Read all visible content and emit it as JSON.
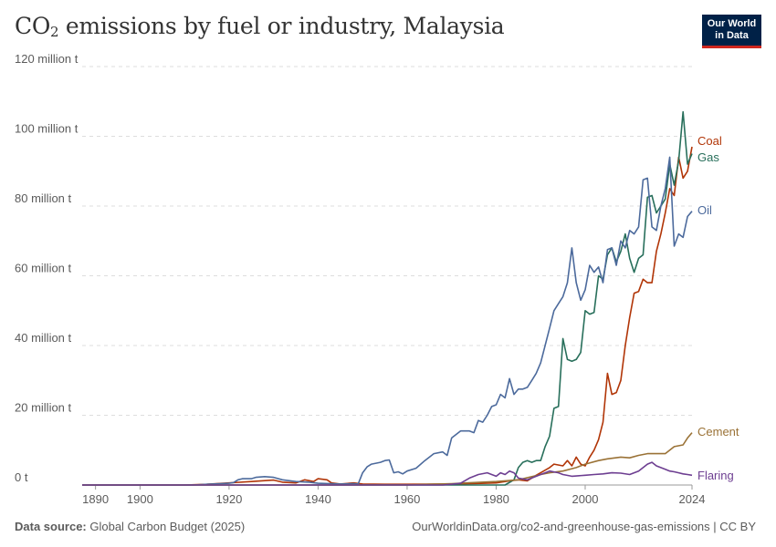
{
  "header": {
    "title_pre": "CO",
    "title_sub": "2",
    "title_post": " emissions by fuel or industry, Malaysia",
    "logo_line1": "Our World",
    "logo_line2": "in Data"
  },
  "footer": {
    "source_label": "Data source:",
    "source_value": " Global Carbon Budget (2025)",
    "url": "OurWorldinData.org/co2-and-greenhouse-gas-emissions | CC BY"
  },
  "chart_data": {
    "type": "line",
    "title": "CO₂ emissions by fuel or industry, Malaysia",
    "xlim": [
      1887,
      2024
    ],
    "ylim": [
      0,
      120000000
    ],
    "x_ticks": [
      1890,
      1900,
      1920,
      1940,
      1960,
      1980,
      2000,
      2024
    ],
    "y_ticks": [
      {
        "value": 0,
        "label": "0 t"
      },
      {
        "value": 20000000,
        "label": "20 million t"
      },
      {
        "value": 40000000,
        "label": "40 million t"
      },
      {
        "value": 60000000,
        "label": "60 million t"
      },
      {
        "value": 80000000,
        "label": "80 million t"
      },
      {
        "value": 100000000,
        "label": "100 million t"
      },
      {
        "value": 120000000,
        "label": "120 million t"
      }
    ],
    "grid": "horizontal",
    "legend": "line-end labels",
    "series": [
      {
        "name": "Coal",
        "color": "#b13507",
        "points": [
          [
            1887,
            0
          ],
          [
            1910,
            0
          ],
          [
            1915,
            200000
          ],
          [
            1920,
            600000
          ],
          [
            1925,
            1000000
          ],
          [
            1930,
            1400000
          ],
          [
            1932,
            800000
          ],
          [
            1935,
            600000
          ],
          [
            1937,
            1500000
          ],
          [
            1939,
            1000000
          ],
          [
            1940,
            1800000
          ],
          [
            1942,
            1500000
          ],
          [
            1943,
            600000
          ],
          [
            1945,
            300000
          ],
          [
            1948,
            600000
          ],
          [
            1950,
            300000
          ],
          [
            1955,
            200000
          ],
          [
            1960,
            200000
          ],
          [
            1970,
            300000
          ],
          [
            1975,
            400000
          ],
          [
            1980,
            600000
          ],
          [
            1983,
            1200000
          ],
          [
            1985,
            1500000
          ],
          [
            1987,
            1200000
          ],
          [
            1989,
            2800000
          ],
          [
            1990,
            3500000
          ],
          [
            1992,
            5000000
          ],
          [
            1993,
            6000000
          ],
          [
            1995,
            5500000
          ],
          [
            1996,
            7000000
          ],
          [
            1997,
            5500000
          ],
          [
            1998,
            8000000
          ],
          [
            1999,
            6000000
          ],
          [
            2000,
            5500000
          ],
          [
            2001,
            8000000
          ],
          [
            2002,
            10000000
          ],
          [
            2003,
            13000000
          ],
          [
            2004,
            18000000
          ],
          [
            2005,
            32000000
          ],
          [
            2006,
            26000000
          ],
          [
            2007,
            26500000
          ],
          [
            2008,
            30000000
          ],
          [
            2009,
            40000000
          ],
          [
            2010,
            48000000
          ],
          [
            2011,
            55000000
          ],
          [
            2012,
            55500000
          ],
          [
            2013,
            59000000
          ],
          [
            2014,
            58000000
          ],
          [
            2015,
            58000000
          ],
          [
            2016,
            67000000
          ],
          [
            2017,
            72000000
          ],
          [
            2018,
            78000000
          ],
          [
            2019,
            85000000
          ],
          [
            2020,
            83000000
          ],
          [
            2021,
            94000000
          ],
          [
            2022,
            88000000
          ],
          [
            2023,
            90000000
          ],
          [
            2024,
            97000000
          ]
        ]
      },
      {
        "name": "Gas",
        "color": "#286f5b",
        "points": [
          [
            1887,
            0
          ],
          [
            1982,
            0
          ],
          [
            1984,
            1500000
          ],
          [
            1985,
            5000000
          ],
          [
            1986,
            6500000
          ],
          [
            1987,
            7000000
          ],
          [
            1988,
            6500000
          ],
          [
            1989,
            7000000
          ],
          [
            1990,
            7000000
          ],
          [
            1991,
            11000000
          ],
          [
            1992,
            14000000
          ],
          [
            1993,
            22000000
          ],
          [
            1994,
            22500000
          ],
          [
            1995,
            42000000
          ],
          [
            1996,
            36000000
          ],
          [
            1997,
            35500000
          ],
          [
            1998,
            36000000
          ],
          [
            1999,
            38000000
          ],
          [
            2000,
            50000000
          ],
          [
            2001,
            49000000
          ],
          [
            2002,
            49500000
          ],
          [
            2003,
            60000000
          ],
          [
            2004,
            59000000
          ],
          [
            2005,
            66000000
          ],
          [
            2006,
            68000000
          ],
          [
            2007,
            64000000
          ],
          [
            2008,
            67000000
          ],
          [
            2009,
            72000000
          ],
          [
            2010,
            65000000
          ],
          [
            2011,
            61000000
          ],
          [
            2012,
            65000000
          ],
          [
            2013,
            66000000
          ],
          [
            2014,
            82500000
          ],
          [
            2015,
            83000000
          ],
          [
            2016,
            78000000
          ],
          [
            2017,
            80000000
          ],
          [
            2018,
            82000000
          ],
          [
            2019,
            92000000
          ],
          [
            2020,
            86000000
          ],
          [
            2021,
            93000000
          ],
          [
            2022,
            107000000
          ],
          [
            2023,
            92000000
          ],
          [
            2024,
            95000000
          ]
        ]
      },
      {
        "name": "Oil",
        "color": "#4c6a9c",
        "points": [
          [
            1887,
            0
          ],
          [
            1912,
            0
          ],
          [
            1915,
            200000
          ],
          [
            1918,
            400000
          ],
          [
            1920,
            500000
          ],
          [
            1921,
            700000
          ],
          [
            1922,
            1500000
          ],
          [
            1923,
            1800000
          ],
          [
            1925,
            1800000
          ],
          [
            1926,
            2200000
          ],
          [
            1928,
            2400000
          ],
          [
            1930,
            2200000
          ],
          [
            1932,
            1500000
          ],
          [
            1935,
            1000000
          ],
          [
            1938,
            800000
          ],
          [
            1940,
            500000
          ],
          [
            1945,
            300000
          ],
          [
            1948,
            400000
          ],
          [
            1949,
            300000
          ],
          [
            1950,
            3500000
          ],
          [
            1951,
            5200000
          ],
          [
            1952,
            6000000
          ],
          [
            1954,
            6500000
          ],
          [
            1955,
            7000000
          ],
          [
            1956,
            7200000
          ],
          [
            1957,
            3500000
          ],
          [
            1958,
            3800000
          ],
          [
            1959,
            3200000
          ],
          [
            1960,
            4000000
          ],
          [
            1962,
            4800000
          ],
          [
            1964,
            7000000
          ],
          [
            1966,
            9000000
          ],
          [
            1968,
            9500000
          ],
          [
            1969,
            8500000
          ],
          [
            1970,
            13500000
          ],
          [
            1972,
            15500000
          ],
          [
            1974,
            15500000
          ],
          [
            1975,
            15000000
          ],
          [
            1976,
            18500000
          ],
          [
            1977,
            18000000
          ],
          [
            1978,
            20000000
          ],
          [
            1979,
            22500000
          ],
          [
            1980,
            23000000
          ],
          [
            1981,
            26000000
          ],
          [
            1982,
            25000000
          ],
          [
            1983,
            30500000
          ],
          [
            1984,
            26000000
          ],
          [
            1985,
            27500000
          ],
          [
            1986,
            27500000
          ],
          [
            1987,
            28000000
          ],
          [
            1988,
            30000000
          ],
          [
            1989,
            32000000
          ],
          [
            1990,
            35000000
          ],
          [
            1991,
            40000000
          ],
          [
            1992,
            45000000
          ],
          [
            1993,
            50000000
          ],
          [
            1994,
            52000000
          ],
          [
            1995,
            54000000
          ],
          [
            1996,
            58000000
          ],
          [
            1997,
            68000000
          ],
          [
            1998,
            58000000
          ],
          [
            1999,
            53000000
          ],
          [
            2000,
            56000000
          ],
          [
            2001,
            63000000
          ],
          [
            2002,
            61000000
          ],
          [
            2003,
            62500000
          ],
          [
            2004,
            58000000
          ],
          [
            2005,
            67500000
          ],
          [
            2006,
            68000000
          ],
          [
            2007,
            63000000
          ],
          [
            2008,
            70000000
          ],
          [
            2009,
            68000000
          ],
          [
            2010,
            73000000
          ],
          [
            2011,
            72000000
          ],
          [
            2012,
            74000000
          ],
          [
            2013,
            87500000
          ],
          [
            2014,
            88000000
          ],
          [
            2015,
            74000000
          ],
          [
            2016,
            73000000
          ],
          [
            2017,
            80000000
          ],
          [
            2018,
            85000000
          ],
          [
            2019,
            94000000
          ],
          [
            2020,
            68500000
          ],
          [
            2021,
            72000000
          ],
          [
            2022,
            71000000
          ],
          [
            2023,
            77000000
          ],
          [
            2024,
            78500000
          ]
        ]
      },
      {
        "name": "Cement",
        "color": "#9a7236",
        "points": [
          [
            1887,
            0
          ],
          [
            1960,
            0
          ],
          [
            1965,
            200000
          ],
          [
            1970,
            400000
          ],
          [
            1975,
            700000
          ],
          [
            1980,
            1000000
          ],
          [
            1985,
            1500000
          ],
          [
            1990,
            3000000
          ],
          [
            1992,
            3500000
          ],
          [
            1995,
            4000000
          ],
          [
            1998,
            5000000
          ],
          [
            2000,
            6000000
          ],
          [
            2003,
            7000000
          ],
          [
            2005,
            7500000
          ],
          [
            2008,
            8000000
          ],
          [
            2010,
            7800000
          ],
          [
            2012,
            8500000
          ],
          [
            2014,
            9000000
          ],
          [
            2016,
            9000000
          ],
          [
            2018,
            9000000
          ],
          [
            2020,
            11000000
          ],
          [
            2022,
            11500000
          ],
          [
            2023,
            13500000
          ],
          [
            2024,
            15000000
          ]
        ]
      },
      {
        "name": "Flaring",
        "color": "#6d3e91",
        "points": [
          [
            1887,
            0
          ],
          [
            1968,
            0
          ],
          [
            1970,
            200000
          ],
          [
            1972,
            500000
          ],
          [
            1974,
            2000000
          ],
          [
            1976,
            3000000
          ],
          [
            1978,
            3500000
          ],
          [
            1979,
            3000000
          ],
          [
            1980,
            2500000
          ],
          [
            1981,
            3500000
          ],
          [
            1982,
            3000000
          ],
          [
            1983,
            4000000
          ],
          [
            1984,
            3500000
          ],
          [
            1985,
            2000000
          ],
          [
            1987,
            1500000
          ],
          [
            1990,
            3000000
          ],
          [
            1992,
            4000000
          ],
          [
            1994,
            3500000
          ],
          [
            1995,
            3000000
          ],
          [
            1997,
            2500000
          ],
          [
            2000,
            2800000
          ],
          [
            2002,
            3000000
          ],
          [
            2004,
            3200000
          ],
          [
            2006,
            3500000
          ],
          [
            2008,
            3400000
          ],
          [
            2010,
            3000000
          ],
          [
            2012,
            4000000
          ],
          [
            2014,
            6000000
          ],
          [
            2015,
            6500000
          ],
          [
            2016,
            5500000
          ],
          [
            2018,
            4500000
          ],
          [
            2019,
            4000000
          ],
          [
            2020,
            3800000
          ],
          [
            2021,
            3500000
          ],
          [
            2022,
            3200000
          ],
          [
            2023,
            3000000
          ],
          [
            2024,
            2800000
          ]
        ]
      }
    ]
  }
}
